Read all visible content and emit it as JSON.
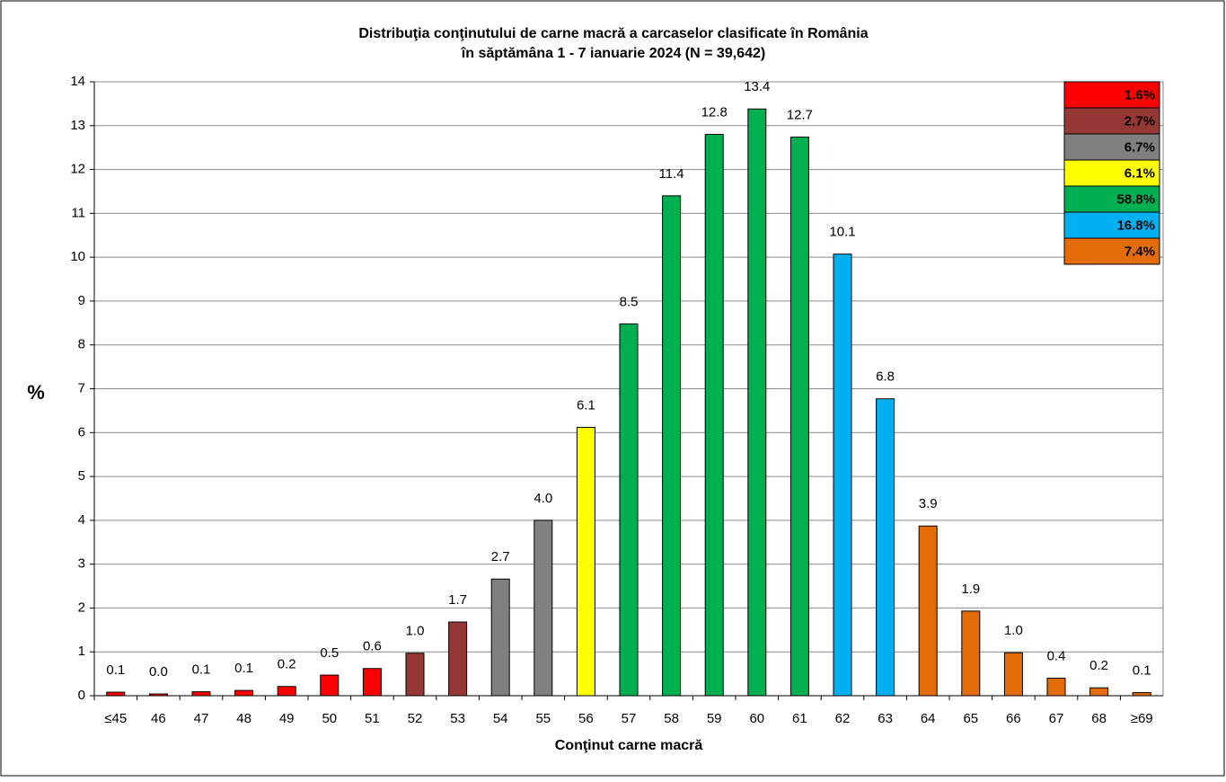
{
  "chart_data": {
    "type": "bar",
    "title": "Distribuţia conţinutului de carne macră a carcaselor clasificate în România",
    "subtitle": "în săptămâna 1 - 7 ianuarie 2024 (N = 39,642)",
    "x_label": "Conţinut carne macră",
    "y_label": "%",
    "categories": [
      "≤45",
      "46",
      "47",
      "48",
      "49",
      "50",
      "51",
      "52",
      "53",
      "54",
      "55",
      "56",
      "57",
      "58",
      "59",
      "60",
      "61",
      "62",
      "63",
      "64",
      "65",
      "66",
      "67",
      "68",
      "≥69"
    ],
    "values": [
      0.08,
      0.04,
      0.09,
      0.12,
      0.21,
      0.47,
      0.62,
      0.97,
      1.68,
      2.66,
      4.0,
      6.12,
      8.48,
      11.4,
      12.8,
      13.38,
      12.74,
      10.07,
      6.77,
      3.87,
      1.93,
      0.98,
      0.4,
      0.18,
      0.07
    ],
    "value_labels": [
      "0.1",
      "0.0",
      "0.1",
      "0.1",
      "0.2",
      "0.5",
      "0.6",
      "1.0",
      "1.7",
      "2.7",
      "4.0",
      "6.1",
      "8.5",
      "11.4",
      "12.8",
      "13.4",
      "12.7",
      "10.1",
      "6.8",
      "3.9",
      "1.9",
      "1.0",
      "0.4",
      "0.2",
      "0.1"
    ],
    "colors": [
      "#ff0000",
      "#ff0000",
      "#ff0000",
      "#ff0000",
      "#ff0000",
      "#ff0000",
      "#ff0000",
      "#953735",
      "#953735",
      "#808080",
      "#808080",
      "#ffff00",
      "#00b050",
      "#00b050",
      "#00b050",
      "#00b050",
      "#00b050",
      "#00b0f0",
      "#00b0f0",
      "#e36c09",
      "#e36c09",
      "#e36c09",
      "#e36c09",
      "#e36c09",
      "#e36c09"
    ],
    "ylim": [
      0,
      14
    ],
    "yticks": [
      0,
      1,
      2,
      3,
      4,
      5,
      6,
      7,
      8,
      9,
      10,
      11,
      12,
      13,
      14
    ],
    "grid": true,
    "legend_boxes": [
      {
        "text": "1.6%",
        "color": "#ff0000"
      },
      {
        "text": "2.7%",
        "color": "#953735"
      },
      {
        "text": "6.7%",
        "color": "#808080"
      },
      {
        "text": "6.1%",
        "color": "#ffff00"
      },
      {
        "text": "58.8%",
        "color": "#00b050"
      },
      {
        "text": "16.8%",
        "color": "#00b0f0"
      },
      {
        "text": "7.4%",
        "color": "#e36c09"
      }
    ]
  }
}
